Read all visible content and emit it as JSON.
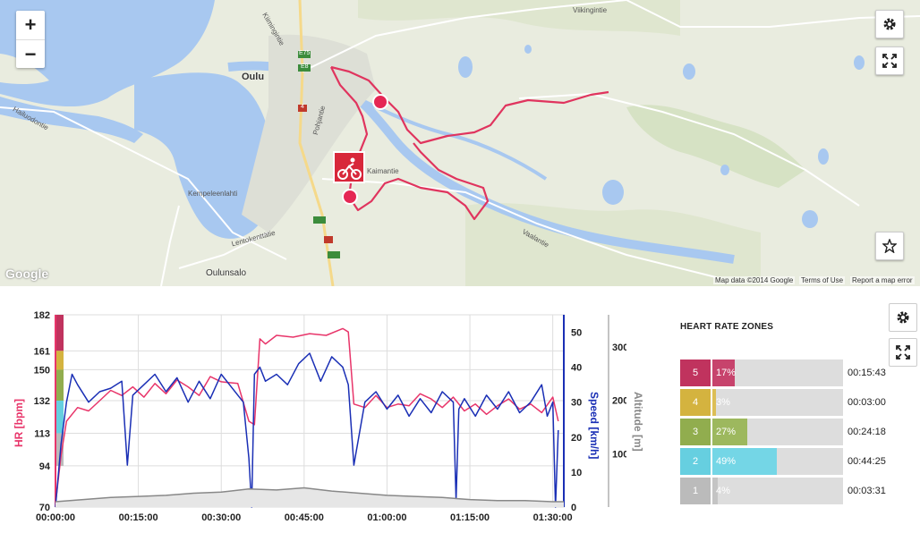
{
  "map": {
    "zoom_in": "+",
    "zoom_out": "−",
    "labels": {
      "city": "Oulu",
      "kempele": "Kempeleenlahti",
      "oulunsalo": "Oulunsalo",
      "kiimingintie": "Kiimingintie",
      "viikin": "Viikingintie",
      "kalmantie": "Kaimantie",
      "vaalantie": "Vaalantie",
      "lentokenttatie": "Lentokenttätie",
      "hailuodontie": "Hailuodontie",
      "pohjantie": "Pohjantie",
      "e75": "E75",
      "e8": "E8",
      "r4": "4",
      "google": "Google"
    },
    "footer": {
      "data": "Map data ©2014 Google",
      "terms": "Terms of Use",
      "report": "Report a map error"
    },
    "controls": [
      "gear-icon",
      "fullscreen-icon",
      "star-icon"
    ]
  },
  "chart_data": {
    "type": "line",
    "xlabel": "",
    "x_ticks": [
      "00:00:00",
      "00:15:00",
      "00:30:00",
      "00:45:00",
      "01:00:00",
      "01:15:00",
      "01:30:00"
    ],
    "x_minutes_range": [
      0,
      92
    ],
    "hr_axis": {
      "label": "HR [bpm]",
      "ticks": [
        70,
        94,
        113,
        132,
        150,
        161,
        182
      ],
      "range": [
        70,
        182
      ],
      "color": "#e8356a"
    },
    "speed_axis": {
      "label": "Speed [km/h]",
      "ticks": [
        0,
        10,
        20,
        30,
        40,
        50
      ],
      "range": [
        0,
        55
      ],
      "color": "#1a2fb5"
    },
    "altitude_axis": {
      "label": "Altitude [m]",
      "ticks": [
        100,
        200,
        300
      ],
      "range": [
        0,
        360
      ],
      "color": "#888888"
    },
    "series": [
      {
        "name": "HR [bpm]",
        "axis": "hr",
        "color": "#e8356a",
        "x": [
          0,
          1,
          2,
          4,
          6,
          8,
          10,
          12,
          14,
          16,
          18,
          20,
          22,
          24,
          26,
          28,
          30,
          33,
          35,
          36,
          37,
          38,
          40,
          43,
          46,
          49,
          52,
          53,
          54,
          56,
          58,
          60,
          62,
          64,
          66,
          68,
          70,
          72,
          74,
          76,
          78,
          80,
          82,
          84,
          86,
          88,
          90,
          91
        ],
        "y": [
          72,
          100,
          120,
          128,
          126,
          132,
          138,
          135,
          140,
          134,
          142,
          136,
          144,
          140,
          135,
          146,
          143,
          142,
          120,
          118,
          168,
          165,
          170,
          169,
          171,
          170,
          174,
          172,
          130,
          128,
          135,
          128,
          130,
          129,
          136,
          133,
          128,
          134,
          126,
          130,
          124,
          129,
          133,
          127,
          130,
          125,
          134,
          120
        ]
      },
      {
        "name": "Speed [km/h]",
        "axis": "speed",
        "color": "#1a2fb5",
        "x": [
          0,
          1,
          2,
          3,
          4,
          6,
          8,
          10,
          12,
          13,
          14,
          16,
          18,
          20,
          22,
          24,
          26,
          28,
          30,
          34,
          35,
          35.5,
          36,
          37,
          38,
          40,
          42,
          44,
          46,
          48,
          50,
          52,
          53,
          54,
          56,
          58,
          60,
          62,
          64,
          66,
          68,
          70,
          72,
          72.5,
          73,
          74,
          76,
          78,
          80,
          82,
          84,
          86,
          88,
          89,
          90,
          90.5,
          91
        ],
        "y": [
          0,
          18,
          30,
          38,
          35,
          30,
          33,
          34,
          36,
          12,
          32,
          35,
          38,
          33,
          37,
          30,
          36,
          31,
          38,
          30,
          14,
          0,
          38,
          40,
          36,
          38,
          35,
          41,
          44,
          36,
          43,
          40,
          35,
          12,
          30,
          33,
          28,
          32,
          26,
          31,
          27,
          33,
          30,
          2,
          28,
          31,
          26,
          32,
          28,
          33,
          27,
          30,
          35,
          26,
          30,
          0,
          22
        ]
      },
      {
        "name": "Altitude [m]",
        "axis": "altitude",
        "color": "#888888",
        "x": [
          0,
          5,
          10,
          15,
          20,
          25,
          30,
          35,
          40,
          45,
          50,
          55,
          60,
          65,
          70,
          75,
          80,
          85,
          90,
          92
        ],
        "y": [
          10,
          14,
          18,
          20,
          22,
          26,
          28,
          34,
          32,
          36,
          30,
          26,
          22,
          20,
          18,
          14,
          12,
          12,
          10,
          10
        ]
      }
    ],
    "zone_bands": [
      {
        "zone": 5,
        "from": 161,
        "to": 182,
        "color": "#c0335e"
      },
      {
        "zone": 4,
        "from": 150,
        "to": 161,
        "color": "#d4b33f"
      },
      {
        "zone": 3,
        "from": 132,
        "to": 150,
        "color": "#91ad4e"
      },
      {
        "zone": 2,
        "from": 113,
        "to": 132,
        "color": "#66cfe0"
      },
      {
        "zone": 1,
        "from": 94,
        "to": 113,
        "color": "#bbbbbb"
      }
    ]
  },
  "zones": {
    "title": "HEART RATE ZONES",
    "items": [
      {
        "num": "5",
        "pct": "17%",
        "fraction": 0.17,
        "time": "00:15:43",
        "num_color": "#c0335e",
        "fill_color": "#c7436c"
      },
      {
        "num": "4",
        "pct": "3%",
        "fraction": 0.03,
        "time": "00:03:00",
        "num_color": "#d4b33f",
        "fill_color": "#dcbe56"
      },
      {
        "num": "3",
        "pct": "27%",
        "fraction": 0.27,
        "time": "00:24:18",
        "num_color": "#91ad4e",
        "fill_color": "#9db85e"
      },
      {
        "num": "2",
        "pct": "49%",
        "fraction": 0.49,
        "time": "00:44:25",
        "num_color": "#66cfe0",
        "fill_color": "#74d6e6"
      },
      {
        "num": "1",
        "pct": "4%",
        "fraction": 0.04,
        "time": "00:03:31",
        "num_color": "#bbbbbb",
        "fill_color": "#c4c4c4"
      }
    ]
  }
}
